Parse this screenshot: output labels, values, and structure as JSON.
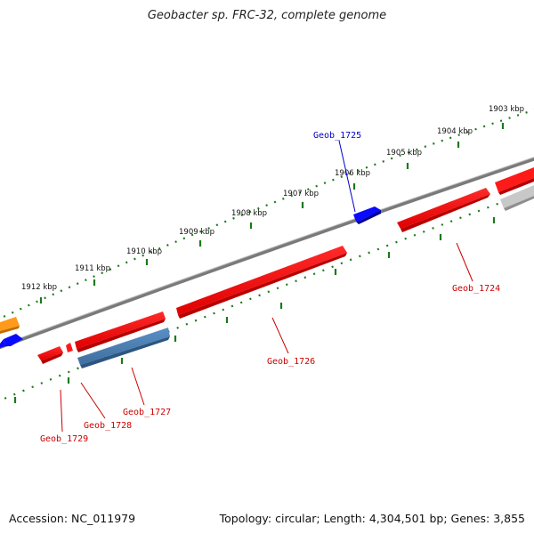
{
  "title": "Geobacter sp. FRC-32, complete genome",
  "footer": {
    "accession": "Accession: NC_011979",
    "stats": "Topology: circular; Length: 4,304,501 bp; Genes: 3,855"
  },
  "colors": {
    "backbone": "#7a7a7a",
    "tick": "#1a7a1a",
    "red_gene": "#ff1a1a",
    "red_gene_dark": "#b80000",
    "blue_gene": "#0a0aff",
    "steel_gene": "#4a7fb5",
    "orange_gene": "#ff9a1a",
    "gray_gene": "#c0c0c0",
    "label_red": "#cc0000",
    "label_blue": "#0000cc"
  },
  "scale_labels": [
    "1903 kbp",
    "1904 kbp",
    "1905 kbp",
    "1906 kbp",
    "1907 kbp",
    "1908 kbp",
    "1909 kbp",
    "1910 kbp",
    "1911 kbp",
    "1912 kbp"
  ],
  "gene_labels": [
    "Geob_1725",
    "Geob_1724",
    "Geob_1726",
    "Geob_1727",
    "Geob_1728",
    "Geob_1729"
  ]
}
